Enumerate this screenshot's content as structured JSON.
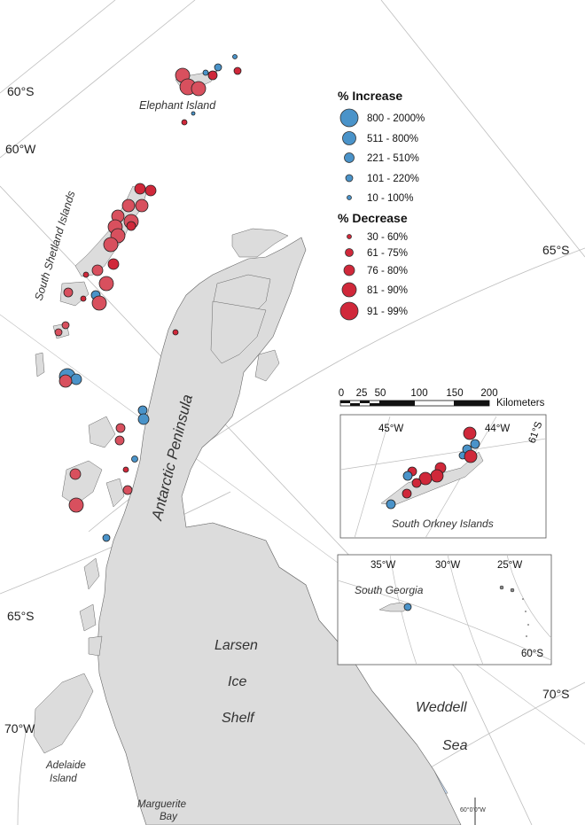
{
  "colors": {
    "land": "#dcdcdc",
    "ice_shelf": "#c7dcf5",
    "increase": "#4a93c9",
    "decrease": "#d0283a",
    "decrease_light": "#d8505e",
    "graticule": "#bdbdbd",
    "frame": "#555555"
  },
  "place_labels": {
    "elephant_island": "Elephant Island",
    "south_shetland": "South Shetland Islands",
    "antarctic_peninsula": "Antarctic Peninsula",
    "larsen_1": "Larsen",
    "larsen_2": "Ice",
    "larsen_3": "Shelf",
    "weddell_1": "Weddell",
    "weddell_2": "Sea",
    "adelaide_1": "Adelaide",
    "adelaide_2": "Island",
    "marguerite_1": "Marguerite",
    "marguerite_2": "Bay"
  },
  "coord_labels": {
    "lat_60": "60°S",
    "lon_60": "60°W",
    "lat_65_right": "65°S",
    "lat_65_left": "65°S",
    "lat_70_right": "70°S",
    "lon_70": "70°W",
    "corner": "60°0'0\"W"
  },
  "legend": {
    "increase_title": "% Increase",
    "increase_items": [
      "800 - 2000%",
      "511 - 800%",
      "221 - 510%",
      "101 - 220%",
      "10 - 100%"
    ],
    "decrease_title": "% Decrease",
    "decrease_items": [
      "30 - 60%",
      "61 - 75%",
      "76 - 80%",
      "81 - 90%",
      "91 - 99%"
    ]
  },
  "scale_bar": {
    "ticks": [
      "0",
      "25",
      "50",
      "100",
      "150",
      "200"
    ],
    "unit": "Kilometers"
  },
  "inset_orkney": {
    "lon_left": "45°W",
    "lon_right": "44°W",
    "lat": "61°S",
    "label": "South Orkney Islands"
  },
  "inset_georgia": {
    "lon_1": "35°W",
    "lon_2": "30°W",
    "lon_3": "25°W",
    "lat": "60°S",
    "label": "South Georgia"
  }
}
